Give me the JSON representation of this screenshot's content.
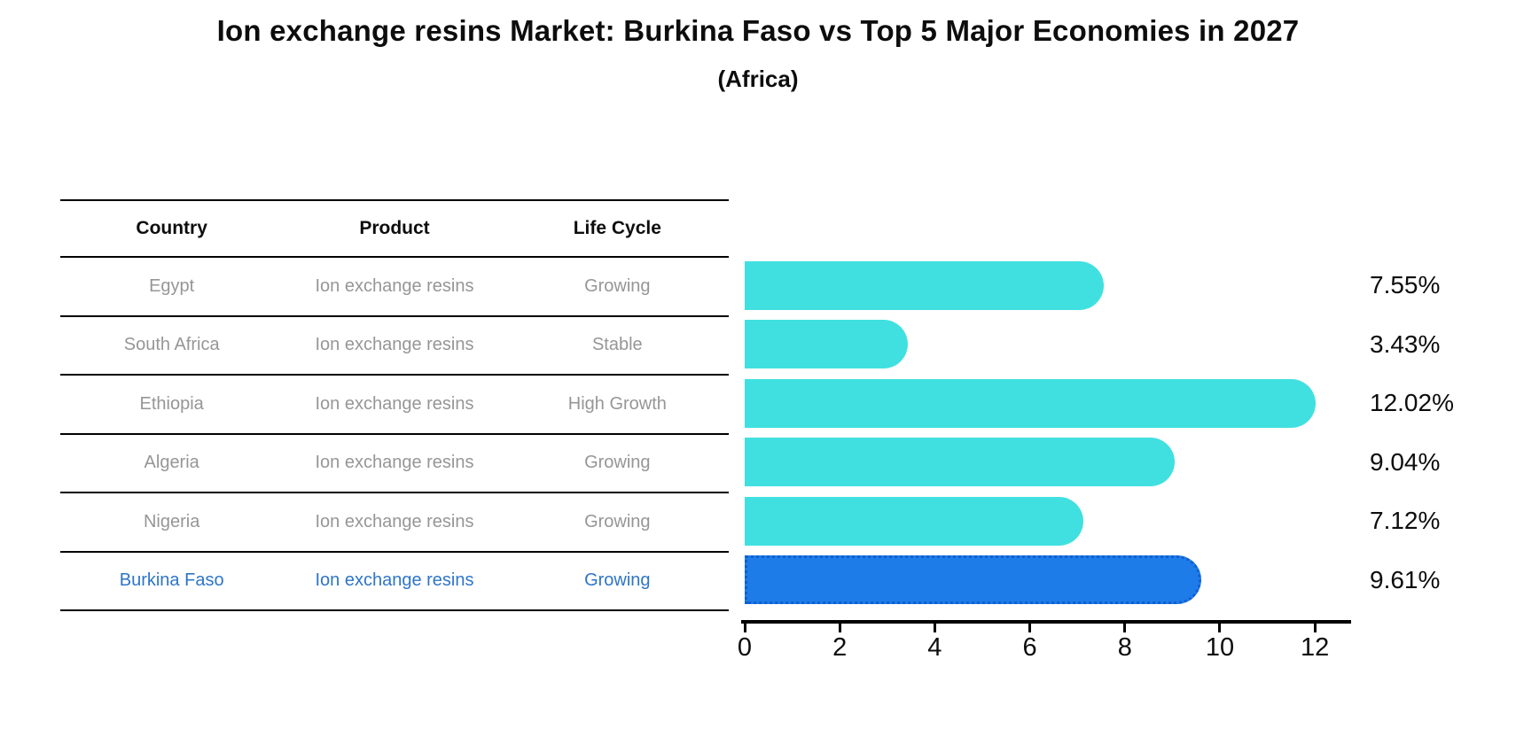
{
  "title": "Ion exchange resins Market: Burkina Faso vs Top 5 Major Economies in 2027",
  "subtitle": "(Africa)",
  "table": {
    "headers": [
      "Country",
      "Product",
      "Life Cycle"
    ],
    "rows": [
      {
        "country": "Egypt",
        "product": "Ion exchange resins",
        "life_cycle": "Growing",
        "highlight": false
      },
      {
        "country": "South Africa",
        "product": "Ion exchange resins",
        "life_cycle": "Stable",
        "highlight": false
      },
      {
        "country": "Ethiopia",
        "product": "Ion exchange resins",
        "life_cycle": "High Growth",
        "highlight": false
      },
      {
        "country": "Algeria",
        "product": "Ion exchange resins",
        "life_cycle": "Growing",
        "highlight": false
      },
      {
        "country": "Nigeria",
        "product": "Ion exchange resins",
        "life_cycle": "Growing",
        "highlight": false
      },
      {
        "country": "Burkina Faso",
        "product": "Ion exchange resins",
        "life_cycle": "Growing",
        "highlight": true
      }
    ]
  },
  "chart_data": {
    "type": "bar",
    "orientation": "horizontal",
    "categories": [
      "Egypt",
      "South Africa",
      "Ethiopia",
      "Algeria",
      "Nigeria",
      "Burkina Faso"
    ],
    "values": [
      7.55,
      3.43,
      12.02,
      9.04,
      7.12,
      9.61
    ],
    "value_labels": [
      "7.55%",
      "3.43%",
      "12.02%",
      "9.04%",
      "7.12%",
      "9.61%"
    ],
    "highlight_index": 5,
    "xlim": [
      0,
      12.65
    ],
    "xticks": [
      0,
      2,
      4,
      6,
      8,
      10,
      12
    ],
    "xtick_labels": [
      "0",
      "2",
      "4",
      "6",
      "8",
      "10",
      "12"
    ],
    "grid": false,
    "legend": "none",
    "bar_color": "#40E0E0",
    "highlight_bar_color": "#1E7CE8",
    "highlight_bar_edge_color": "#0f5fd2",
    "highlight_text_color": "#2e75c8",
    "text_color": "#969696"
  }
}
